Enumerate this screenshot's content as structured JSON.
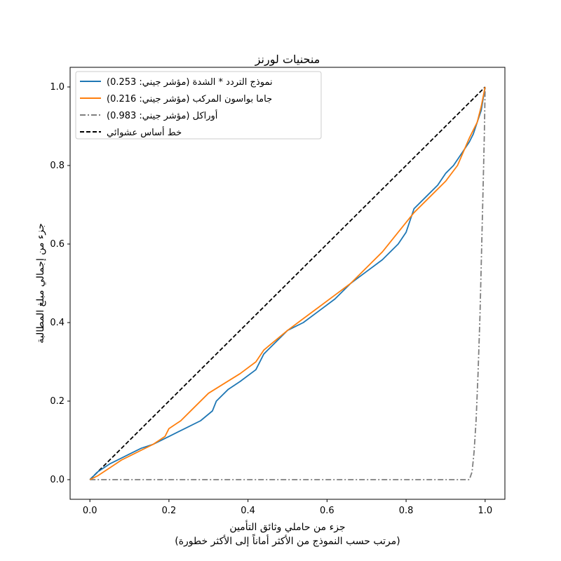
{
  "chart_data": {
    "type": "line",
    "title": "منحنيات لورنز",
    "xlabel_line1": "جزء من حاملي وثائق التأمين",
    "xlabel_line2": "(مرتب حسب النموذج من الأكثر أماناً إلى الأكثر خطورة)",
    "ylabel": "جزء من إجمالي مبلغ المطالبة",
    "xlim": [
      -0.05,
      1.05
    ],
    "ylim": [
      -0.05,
      1.05
    ],
    "xticks": [
      "0.0",
      "0.2",
      "0.4",
      "0.6",
      "0.8",
      "1.0"
    ],
    "yticks": [
      "0.0",
      "0.2",
      "0.4",
      "0.6",
      "0.8",
      "1.0"
    ],
    "grid": false,
    "legend_position": "upper-left",
    "series": [
      {
        "name": "نموذج التردد * الشدة (مؤشر جيني: 0.253)",
        "color": "#1f77b4",
        "style": "solid",
        "x": [
          0.0,
          0.02,
          0.05,
          0.08,
          0.1,
          0.13,
          0.16,
          0.2,
          0.24,
          0.28,
          0.31,
          0.32,
          0.35,
          0.38,
          0.42,
          0.44,
          0.47,
          0.5,
          0.54,
          0.58,
          0.62,
          0.66,
          0.7,
          0.74,
          0.78,
          0.8,
          0.82,
          0.85,
          0.88,
          0.9,
          0.92,
          0.94,
          0.96,
          0.97,
          0.98,
          0.99,
          1.0
        ],
        "y": [
          0.0,
          0.02,
          0.04,
          0.055,
          0.065,
          0.08,
          0.09,
          0.11,
          0.13,
          0.15,
          0.175,
          0.2,
          0.23,
          0.25,
          0.28,
          0.32,
          0.35,
          0.38,
          0.4,
          0.43,
          0.46,
          0.5,
          0.53,
          0.56,
          0.6,
          0.63,
          0.69,
          0.72,
          0.75,
          0.78,
          0.8,
          0.83,
          0.86,
          0.88,
          0.91,
          0.94,
          1.0
        ]
      },
      {
        "name": "جاما بواسون المركب (مؤشر جيني: 0.216)",
        "color": "#ff7f0e",
        "style": "solid",
        "x": [
          0.0,
          0.02,
          0.05,
          0.08,
          0.1,
          0.13,
          0.16,
          0.19,
          0.2,
          0.23,
          0.26,
          0.3,
          0.34,
          0.38,
          0.42,
          0.44,
          0.47,
          0.5,
          0.54,
          0.58,
          0.62,
          0.66,
          0.7,
          0.74,
          0.78,
          0.82,
          0.86,
          0.9,
          0.93,
          0.96,
          0.98,
          0.99,
          1.0
        ],
        "y": [
          0.0,
          0.01,
          0.03,
          0.05,
          0.06,
          0.075,
          0.09,
          0.11,
          0.13,
          0.15,
          0.18,
          0.22,
          0.245,
          0.27,
          0.3,
          0.33,
          0.355,
          0.38,
          0.41,
          0.44,
          0.47,
          0.5,
          0.54,
          0.58,
          0.63,
          0.68,
          0.72,
          0.76,
          0.8,
          0.87,
          0.91,
          0.95,
          1.0
        ]
      },
      {
        "name": "أوراكل (مؤشر جيني: 0.983)",
        "color": "#7f7f7f",
        "style": "dashdot",
        "x": [
          0.0,
          0.96,
          0.967,
          0.972,
          0.977,
          0.982,
          0.987,
          0.991,
          0.995,
          0.998,
          1.0
        ],
        "y": [
          0.0,
          0.0,
          0.02,
          0.07,
          0.15,
          0.27,
          0.42,
          0.58,
          0.75,
          0.88,
          1.0
        ]
      },
      {
        "name": "خط أساس عشوائي",
        "color": "#000000",
        "style": "dashed",
        "x": [
          0.0,
          1.0
        ],
        "y": [
          0.0,
          1.0
        ]
      }
    ]
  }
}
